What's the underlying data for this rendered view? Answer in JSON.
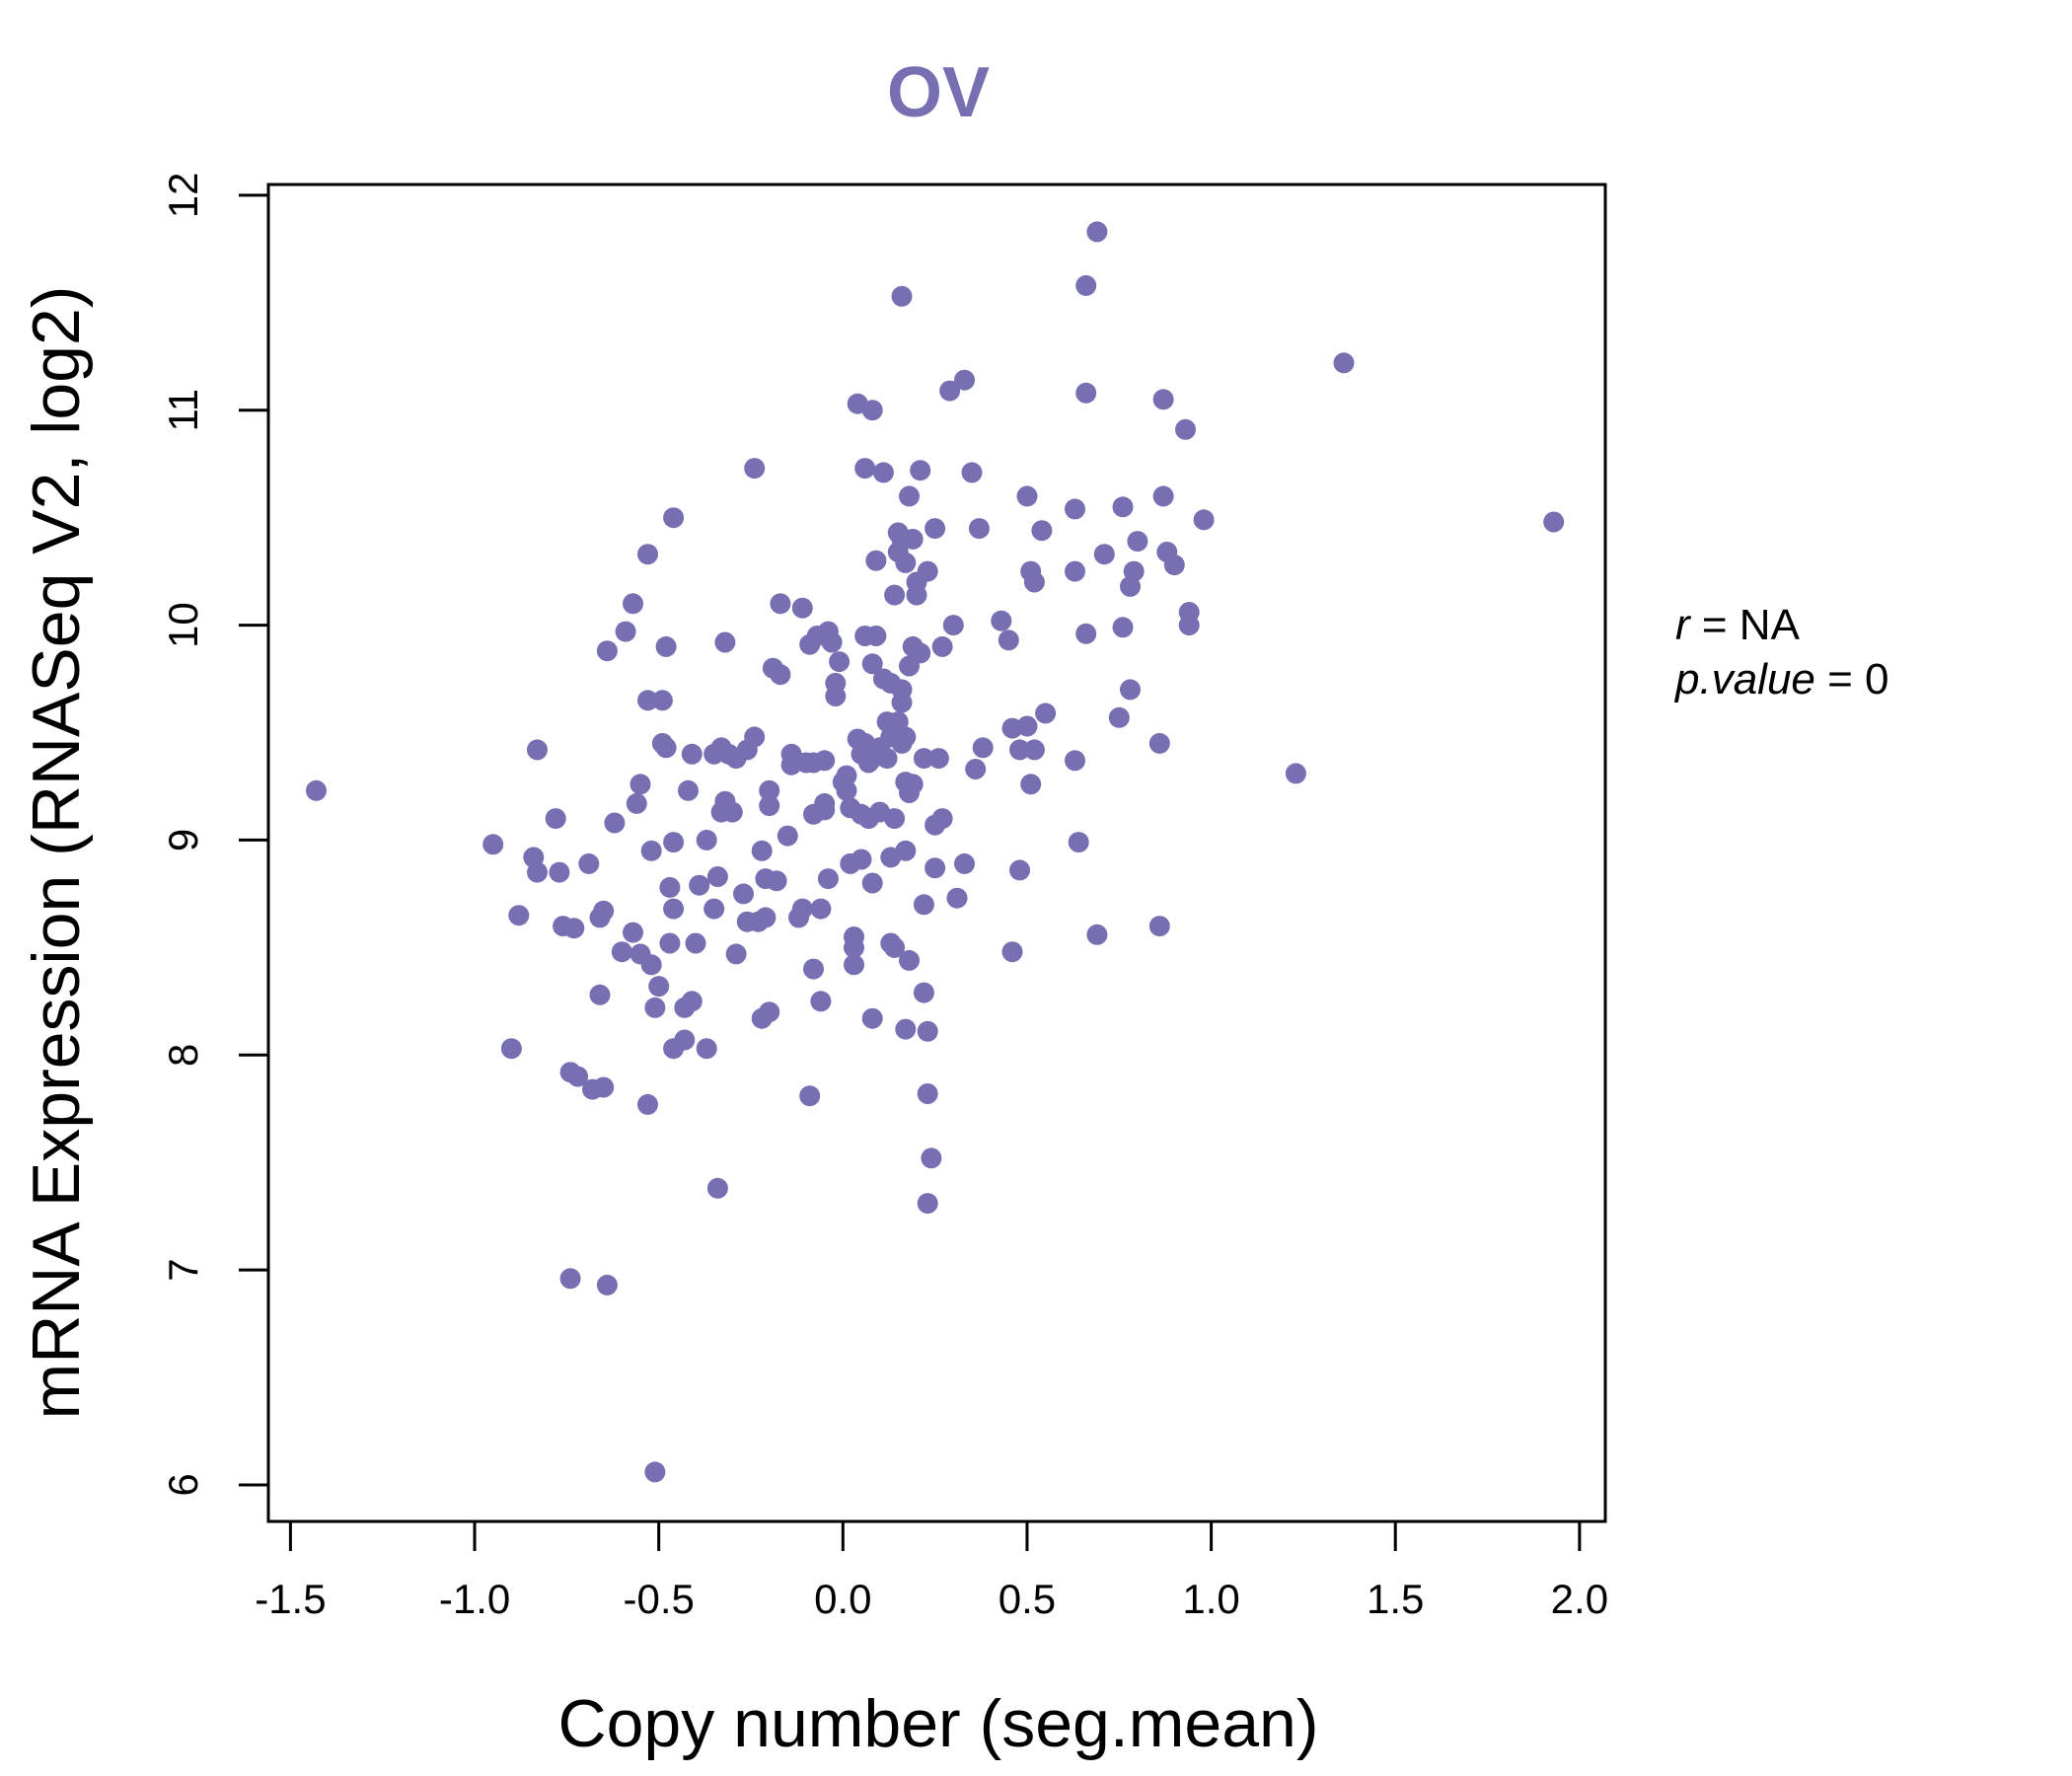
{
  "chart_data": {
    "type": "scatter",
    "title": "OV",
    "xlabel": "Copy number (seg.mean)",
    "ylabel": "mRNA Expression (RNASeq V2, log2)",
    "xlim": [
      -1.56,
      2.07
    ],
    "ylim": [
      5.83,
      12.05
    ],
    "xticks": [
      -1.5,
      -1.0,
      -0.5,
      0.0,
      0.5,
      1.0,
      1.5,
      2.0
    ],
    "xtick_labels": [
      "-1.5",
      "-1.0",
      "-0.5",
      "0.0",
      "0.5",
      "1.0",
      "1.5",
      "2.0"
    ],
    "yticks": [
      6,
      7,
      8,
      9,
      10,
      11,
      12
    ],
    "ytick_labels": [
      "6",
      "7",
      "8",
      "9",
      "10",
      "11",
      "12"
    ],
    "grid": false,
    "point_color": "#7670b3",
    "annotation": {
      "r_var": "r",
      "r_eq": " = NA",
      "p_var": "p.value",
      "p_eq": " = 0"
    },
    "points": [
      [
        -1.43,
        9.23
      ],
      [
        -0.95,
        8.98
      ],
      [
        -0.9,
        8.03
      ],
      [
        -0.88,
        8.65
      ],
      [
        -0.84,
        8.92
      ],
      [
        -0.83,
        9.42
      ],
      [
        -0.83,
        8.85
      ],
      [
        -0.78,
        9.1
      ],
      [
        -0.77,
        8.85
      ],
      [
        -0.76,
        8.6
      ],
      [
        -0.74,
        7.92
      ],
      [
        -0.74,
        6.96
      ],
      [
        -0.73,
        8.59
      ],
      [
        -0.72,
        7.9
      ],
      [
        -0.69,
        8.89
      ],
      [
        -0.68,
        7.84
      ],
      [
        -0.66,
        8.28
      ],
      [
        -0.66,
        8.64
      ],
      [
        -0.65,
        7.85
      ],
      [
        -0.65,
        8.67
      ],
      [
        -0.64,
        6.93
      ],
      [
        -0.64,
        9.88
      ],
      [
        -0.62,
        9.08
      ],
      [
        -0.6,
        8.48
      ],
      [
        -0.59,
        9.97
      ],
      [
        -0.57,
        8.57
      ],
      [
        -0.57,
        10.1
      ],
      [
        -0.56,
        9.17
      ],
      [
        -0.55,
        9.26
      ],
      [
        -0.55,
        8.47
      ],
      [
        -0.53,
        7.77
      ],
      [
        -0.53,
        9.65
      ],
      [
        -0.53,
        10.33
      ],
      [
        -0.52,
        8.95
      ],
      [
        -0.52,
        8.42
      ],
      [
        -0.51,
        8.22
      ],
      [
        -0.51,
        6.06
      ],
      [
        -0.5,
        8.32
      ],
      [
        -0.49,
        9.65
      ],
      [
        -0.49,
        9.45
      ],
      [
        -0.48,
        9.9
      ],
      [
        -0.48,
        9.43
      ],
      [
        -0.47,
        8.78
      ],
      [
        -0.47,
        8.52
      ],
      [
        -0.46,
        8.68
      ],
      [
        -0.46,
        8.99
      ],
      [
        -0.46,
        10.5
      ],
      [
        -0.46,
        8.03
      ],
      [
        -0.43,
        8.22
      ],
      [
        -0.43,
        8.07
      ],
      [
        -0.42,
        9.23
      ],
      [
        -0.41,
        9.4
      ],
      [
        -0.41,
        8.25
      ],
      [
        -0.4,
        8.52
      ],
      [
        -0.39,
        8.79
      ],
      [
        -0.37,
        8.03
      ],
      [
        -0.37,
        9.0
      ],
      [
        -0.35,
        8.68
      ],
      [
        -0.35,
        9.4
      ],
      [
        -0.34,
        7.38
      ],
      [
        -0.34,
        8.83
      ],
      [
        -0.33,
        9.43
      ],
      [
        -0.33,
        9.13
      ],
      [
        -0.32,
        9.18
      ],
      [
        -0.32,
        9.92
      ],
      [
        -0.31,
        9.4
      ],
      [
        -0.3,
        9.13
      ],
      [
        -0.29,
        9.38
      ],
      [
        -0.29,
        8.47
      ],
      [
        -0.27,
        8.75
      ],
      [
        -0.26,
        9.42
      ],
      [
        -0.26,
        8.62
      ],
      [
        -0.24,
        9.48
      ],
      [
        -0.24,
        10.73
      ],
      [
        -0.23,
        8.62
      ],
      [
        -0.22,
        8.95
      ],
      [
        -0.22,
        8.17
      ],
      [
        -0.21,
        8.64
      ],
      [
        -0.21,
        8.82
      ],
      [
        -0.2,
        8.2
      ],
      [
        -0.2,
        9.23
      ],
      [
        -0.2,
        9.16
      ],
      [
        -0.19,
        9.8
      ],
      [
        -0.18,
        8.81
      ],
      [
        -0.17,
        10.1
      ],
      [
        -0.17,
        9.77
      ],
      [
        -0.15,
        9.02
      ],
      [
        -0.14,
        9.35
      ],
      [
        -0.14,
        9.4
      ],
      [
        -0.13,
        9.37
      ],
      [
        -0.12,
        8.64
      ],
      [
        -0.11,
        8.68
      ],
      [
        -0.11,
        10.08
      ],
      [
        -0.1,
        9.36
      ],
      [
        -0.09,
        7.81
      ],
      [
        -0.09,
        9.91
      ],
      [
        -0.08,
        9.36
      ],
      [
        -0.08,
        9.12
      ],
      [
        -0.08,
        8.4
      ],
      [
        -0.07,
        9.95
      ],
      [
        -0.06,
        8.68
      ],
      [
        -0.06,
        8.25
      ],
      [
        -0.05,
        9.14
      ],
      [
        -0.05,
        9.17
      ],
      [
        -0.05,
        9.37
      ],
      [
        -0.04,
        8.82
      ],
      [
        -0.04,
        9.97
      ],
      [
        -0.03,
        9.92
      ],
      [
        -0.02,
        9.73
      ],
      [
        -0.02,
        9.67
      ],
      [
        -0.01,
        9.83
      ],
      [
        0.0,
        9.27
      ],
      [
        0.01,
        9.3
      ],
      [
        0.01,
        9.23
      ],
      [
        0.02,
        9.15
      ],
      [
        0.02,
        8.89
      ],
      [
        0.03,
        8.55
      ],
      [
        0.03,
        8.5
      ],
      [
        0.03,
        8.42
      ],
      [
        0.04,
        9.47
      ],
      [
        0.04,
        11.03
      ],
      [
        0.05,
        9.12
      ],
      [
        0.05,
        9.4
      ],
      [
        0.05,
        8.91
      ],
      [
        0.06,
        10.73
      ],
      [
        0.06,
        9.95
      ],
      [
        0.06,
        9.45
      ],
      [
        0.07,
        9.36
      ],
      [
        0.07,
        9.1
      ],
      [
        0.08,
        11.0
      ],
      [
        0.08,
        9.82
      ],
      [
        0.08,
        9.38
      ],
      [
        0.08,
        8.17
      ],
      [
        0.08,
        8.8
      ],
      [
        0.09,
        9.95
      ],
      [
        0.09,
        10.3
      ],
      [
        0.1,
        9.13
      ],
      [
        0.1,
        9.43
      ],
      [
        0.11,
        10.71
      ],
      [
        0.11,
        9.75
      ],
      [
        0.12,
        9.55
      ],
      [
        0.12,
        9.38
      ],
      [
        0.13,
        9.73
      ],
      [
        0.13,
        9.48
      ],
      [
        0.13,
        8.92
      ],
      [
        0.13,
        8.52
      ],
      [
        0.14,
        10.14
      ],
      [
        0.14,
        9.1
      ],
      [
        0.14,
        8.5
      ],
      [
        0.15,
        10.34
      ],
      [
        0.15,
        10.43
      ],
      [
        0.15,
        9.55
      ],
      [
        0.16,
        11.53
      ],
      [
        0.16,
        10.4
      ],
      [
        0.16,
        9.7
      ],
      [
        0.16,
        9.64
      ],
      [
        0.16,
        9.45
      ],
      [
        0.17,
        10.29
      ],
      [
        0.17,
        9.48
      ],
      [
        0.17,
        9.27
      ],
      [
        0.17,
        8.95
      ],
      [
        0.17,
        8.12
      ],
      [
        0.18,
        10.6
      ],
      [
        0.18,
        9.81
      ],
      [
        0.18,
        9.22
      ],
      [
        0.18,
        8.44
      ],
      [
        0.19,
        10.4
      ],
      [
        0.19,
        9.26
      ],
      [
        0.19,
        9.9
      ],
      [
        0.2,
        10.2
      ],
      [
        0.2,
        10.14
      ],
      [
        0.21,
        10.72
      ],
      [
        0.21,
        9.87
      ],
      [
        0.22,
        9.38
      ],
      [
        0.22,
        8.7
      ],
      [
        0.22,
        8.29
      ],
      [
        0.23,
        10.25
      ],
      [
        0.23,
        8.11
      ],
      [
        0.23,
        7.82
      ],
      [
        0.23,
        7.31
      ],
      [
        0.24,
        7.52
      ],
      [
        0.25,
        10.45
      ],
      [
        0.25,
        8.87
      ],
      [
        0.25,
        9.07
      ],
      [
        0.26,
        9.38
      ],
      [
        0.27,
        9.9
      ],
      [
        0.27,
        9.1
      ],
      [
        0.29,
        11.09
      ],
      [
        0.3,
        10.0
      ],
      [
        0.31,
        8.73
      ],
      [
        0.33,
        11.14
      ],
      [
        0.33,
        8.89
      ],
      [
        0.35,
        10.71
      ],
      [
        0.36,
        9.33
      ],
      [
        0.37,
        10.45
      ],
      [
        0.38,
        9.43
      ],
      [
        0.43,
        10.02
      ],
      [
        0.45,
        9.93
      ],
      [
        0.46,
        9.52
      ],
      [
        0.46,
        8.48
      ],
      [
        0.48,
        8.86
      ],
      [
        0.48,
        9.42
      ],
      [
        0.5,
        10.6
      ],
      [
        0.5,
        9.53
      ],
      [
        0.51,
        9.26
      ],
      [
        0.51,
        10.25
      ],
      [
        0.52,
        10.2
      ],
      [
        0.52,
        9.42
      ],
      [
        0.54,
        10.44
      ],
      [
        0.55,
        9.59
      ],
      [
        0.63,
        9.37
      ],
      [
        0.63,
        10.54
      ],
      [
        0.63,
        10.25
      ],
      [
        0.64,
        8.99
      ],
      [
        0.66,
        11.58
      ],
      [
        0.66,
        11.08
      ],
      [
        0.66,
        9.96
      ],
      [
        0.69,
        8.56
      ],
      [
        0.69,
        11.83
      ],
      [
        0.71,
        10.33
      ],
      [
        0.75,
        9.57
      ],
      [
        0.76,
        10.55
      ],
      [
        0.76,
        9.99
      ],
      [
        0.78,
        9.7
      ],
      [
        0.78,
        10.18
      ],
      [
        0.79,
        10.25
      ],
      [
        0.8,
        10.39
      ],
      [
        0.86,
        9.45
      ],
      [
        0.86,
        8.6
      ],
      [
        0.87,
        10.6
      ],
      [
        0.87,
        11.05
      ],
      [
        0.88,
        10.34
      ],
      [
        0.9,
        10.28
      ],
      [
        0.93,
        10.91
      ],
      [
        0.94,
        10.06
      ],
      [
        0.94,
        10.0
      ],
      [
        0.98,
        10.49
      ],
      [
        1.23,
        9.31
      ],
      [
        1.36,
        11.22
      ],
      [
        1.93,
        10.48
      ]
    ]
  }
}
